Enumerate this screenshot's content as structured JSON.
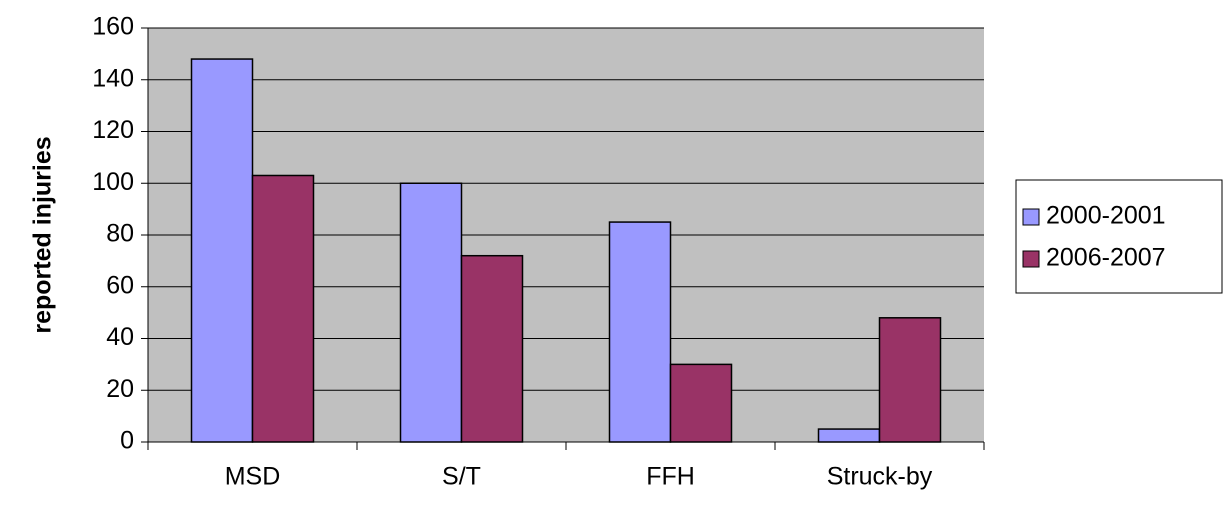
{
  "chart_data": {
    "type": "bar",
    "title": "",
    "xlabel": "",
    "ylabel": "reported injuries",
    "categories": [
      "MSD",
      "S/T",
      "FFH",
      "Struck-by"
    ],
    "series": [
      {
        "name": "2000-2001",
        "color": "#9999ff",
        "values": [
          148,
          100,
          85,
          5
        ]
      },
      {
        "name": "2006-2007",
        "color": "#993366",
        "values": [
          103,
          72,
          30,
          48
        ]
      }
    ],
    "ylim": [
      0,
      160
    ],
    "yticks": [
      0,
      20,
      40,
      60,
      80,
      100,
      120,
      140,
      160
    ],
    "grid": true,
    "plot_background": "#c0c0c0",
    "legend_position": "right"
  }
}
